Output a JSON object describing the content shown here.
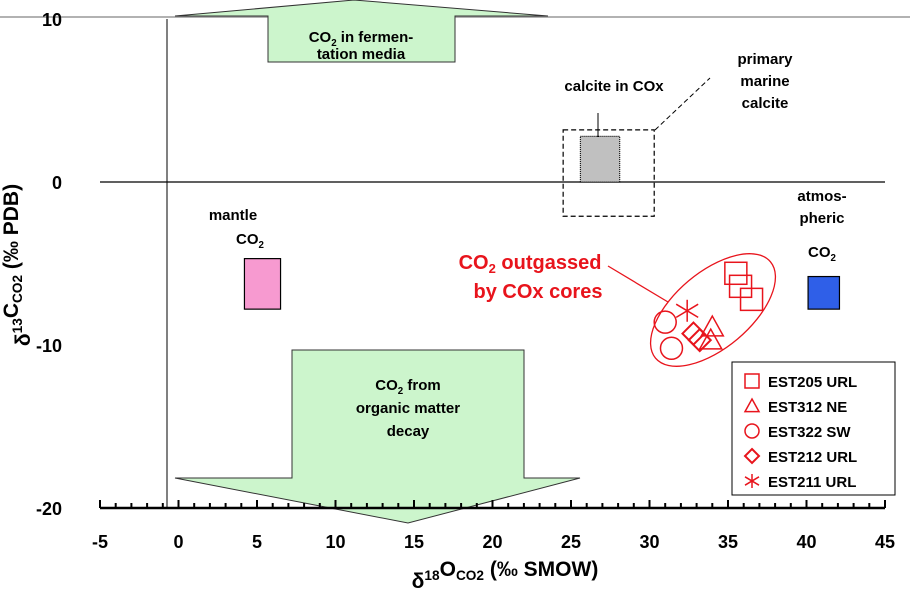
{
  "chart_data": {
    "type": "scatter",
    "xlabel": "δ18OCO2 (‰ SMOW)",
    "xlabel_parts": {
      "main": "δ",
      "sup": "18",
      "base": "O",
      "sub": "CO2",
      "unit": "(‰ SMOW)"
    },
    "ylabel_parts": {
      "main": "δ",
      "sup": "13",
      "base": "C",
      "sub": "CO2",
      "unit": "(‰ PDB)"
    },
    "xlim": [
      -5,
      45
    ],
    "ylim": [
      -20,
      10
    ],
    "xticks": [
      -5,
      0,
      5,
      10,
      15,
      20,
      25,
      30,
      35,
      40,
      45
    ],
    "yticks": [
      -20,
      -10,
      0,
      10
    ],
    "series": [
      {
        "name": "EST205 URL",
        "marker": "square",
        "points": [
          [
            35.5,
            -5.6
          ],
          [
            35.8,
            -6.4
          ],
          [
            36.5,
            -7.2
          ]
        ]
      },
      {
        "name": "EST312 NE",
        "marker": "triangle",
        "points": [
          [
            34.0,
            -8.9
          ],
          [
            33.9,
            -9.7
          ]
        ]
      },
      {
        "name": "EST322 SW",
        "marker": "circle",
        "points": [
          [
            31.0,
            -8.6
          ],
          [
            31.4,
            -10.2
          ]
        ]
      },
      {
        "name": "EST212 URL",
        "marker": "diamond",
        "points": [
          [
            32.8,
            -9.3
          ],
          [
            33.2,
            -9.7
          ]
        ]
      },
      {
        "name": "EST211 URL",
        "marker": "asterisk",
        "points": [
          [
            32.4,
            -7.9
          ]
        ]
      }
    ],
    "marker_color": "#e8141c",
    "regions": [
      {
        "name": "mantle CO2",
        "x": [
          4.2,
          6.5
        ],
        "y": [
          -7.8,
          -4.7
        ],
        "color": "#f79ad0"
      },
      {
        "name": "atmospheric CO2",
        "x": [
          40.1,
          42.1
        ],
        "y": [
          -7.8,
          -5.8
        ],
        "color": "#2f5fe8"
      },
      {
        "name": "calcite in COx",
        "x": [
          25.6,
          28.1
        ],
        "y": [
          0,
          2.8
        ],
        "color": "#c0c0c0"
      },
      {
        "name": "primary marine calcite",
        "x": [
          24.5,
          30.3
        ],
        "y": [
          -2.1,
          3.2
        ],
        "color": "none"
      }
    ],
    "annotations": {
      "fermentation": [
        "CO",
        "2",
        " in fermen-",
        "tation media"
      ],
      "organic": [
        "CO",
        "2",
        "  from",
        "organic matter",
        "decay"
      ],
      "calcite": "calcite in COx",
      "marine": [
        "primary",
        "marine",
        "calcite"
      ],
      "mantle": [
        "mantle",
        "CO",
        "2"
      ],
      "atmos": [
        "atmos-",
        "pheric",
        "CO",
        "2"
      ],
      "outgassed": [
        "CO",
        "2",
        " outgassed",
        "by COx cores"
      ]
    },
    "arrow_color": "#ccf5cc",
    "legend_placement": "bottom-right"
  }
}
